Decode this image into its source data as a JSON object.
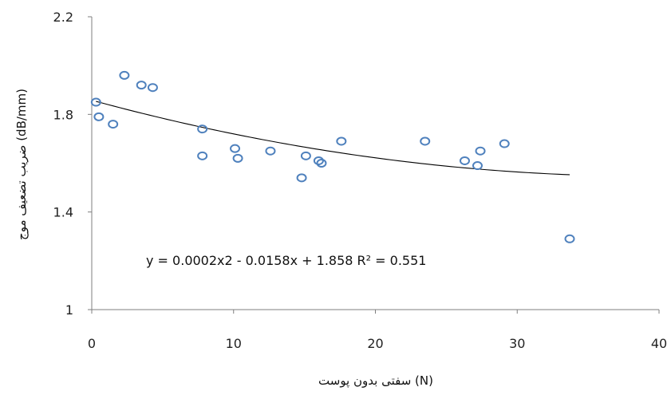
{
  "chart_data": {
    "type": "scatter",
    "title": "",
    "xlabel": "سفتی بدون پوست (N)",
    "ylabel": "ضریب تضعیف موج (dB/mm)",
    "xlim": [
      0,
      40
    ],
    "ylim": [
      1,
      2.2
    ],
    "x_ticks": [
      "0",
      "10",
      "20",
      "30",
      "40"
    ],
    "y_ticks": [
      "1",
      "1.4",
      "1.8",
      "2.2"
    ],
    "grid": false,
    "legend": "none",
    "marker_color": "#4f81bd",
    "trendline": {
      "type": "polynomial",
      "coefficients": [
        0.0002,
        -0.0158,
        1.858
      ],
      "x_range": [
        0.3,
        33.7
      ],
      "label": "y = 0.0002x2 - 0.0158x + 1.858   R² = 0.551"
    },
    "series": [
      {
        "points": [
          {
            "x": 0.3,
            "y": 1.85
          },
          {
            "x": 0.5,
            "y": 1.79
          },
          {
            "x": 1.5,
            "y": 1.76
          },
          {
            "x": 2.3,
            "y": 1.96
          },
          {
            "x": 3.5,
            "y": 1.92
          },
          {
            "x": 4.3,
            "y": 1.91
          },
          {
            "x": 7.8,
            "y": 1.74
          },
          {
            "x": 7.8,
            "y": 1.63
          },
          {
            "x": 10.1,
            "y": 1.66
          },
          {
            "x": 10.3,
            "y": 1.62
          },
          {
            "x": 12.6,
            "y": 1.65
          },
          {
            "x": 14.8,
            "y": 1.54
          },
          {
            "x": 15.1,
            "y": 1.63
          },
          {
            "x": 16.0,
            "y": 1.61
          },
          {
            "x": 16.2,
            "y": 1.6
          },
          {
            "x": 17.6,
            "y": 1.69
          },
          {
            "x": 23.5,
            "y": 1.69
          },
          {
            "x": 26.3,
            "y": 1.61
          },
          {
            "x": 27.2,
            "y": 1.59
          },
          {
            "x": 27.4,
            "y": 1.65
          },
          {
            "x": 29.1,
            "y": 1.68
          },
          {
            "x": 33.7,
            "y": 1.29
          }
        ]
      }
    ]
  }
}
